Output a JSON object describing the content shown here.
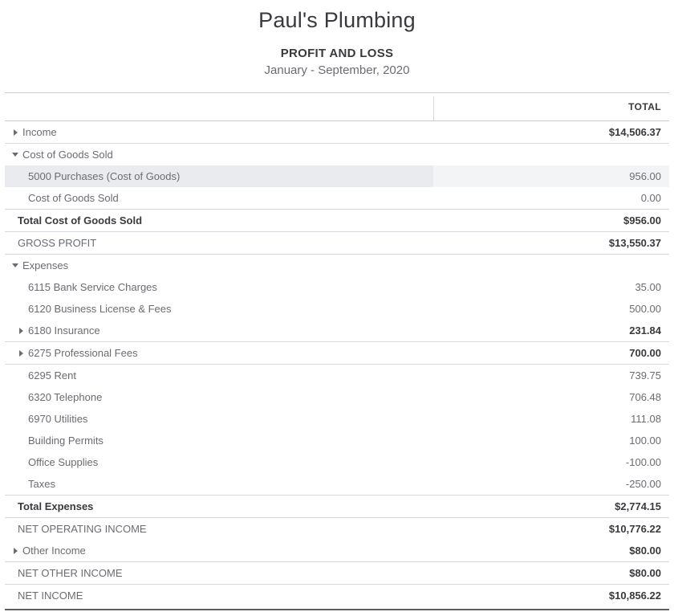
{
  "header": {
    "company": "Paul's Plumbing",
    "title": "PROFIT AND LOSS",
    "period": "January - September, 2020"
  },
  "table": {
    "total_header": "TOTAL",
    "rows": [
      {
        "label": "Income",
        "value": "$14,506.37",
        "indent": 0,
        "arrow": "right",
        "bold_label": false,
        "bold_value": true,
        "highlighted": false,
        "border_bottom": true,
        "end_rule": false
      },
      {
        "label": "Cost of Goods Sold",
        "value": "",
        "indent": 0,
        "arrow": "down",
        "bold_label": false,
        "bold_value": false,
        "highlighted": false,
        "border_bottom": false,
        "end_rule": false
      },
      {
        "label": "5000 Purchases (Cost of Goods)",
        "value": "956.00",
        "indent": 1,
        "arrow": null,
        "bold_label": false,
        "bold_value": false,
        "highlighted": true,
        "border_bottom": false,
        "end_rule": false
      },
      {
        "label": "Cost of Goods Sold",
        "value": "0.00",
        "indent": 1,
        "arrow": null,
        "bold_label": false,
        "bold_value": false,
        "highlighted": false,
        "border_bottom": true,
        "end_rule": false
      },
      {
        "label": "Total Cost of Goods Sold",
        "value": "$956.00",
        "indent": 0,
        "arrow": null,
        "bold_label": true,
        "bold_value": true,
        "highlighted": false,
        "border_bottom": true,
        "end_rule": false
      },
      {
        "label": "GROSS PROFIT",
        "value": "$13,550.37",
        "indent": 0,
        "arrow": null,
        "bold_label": false,
        "bold_value": true,
        "highlighted": false,
        "border_bottom": true,
        "end_rule": false
      },
      {
        "label": "Expenses",
        "value": "",
        "indent": 0,
        "arrow": "down",
        "bold_label": false,
        "bold_value": false,
        "highlighted": false,
        "border_bottom": false,
        "end_rule": false
      },
      {
        "label": "6115 Bank Service Charges",
        "value": "35.00",
        "indent": 1,
        "arrow": null,
        "bold_label": false,
        "bold_value": false,
        "highlighted": false,
        "border_bottom": false,
        "end_rule": false
      },
      {
        "label": "6120 Business License & Fees",
        "value": "500.00",
        "indent": 1,
        "arrow": null,
        "bold_label": false,
        "bold_value": false,
        "highlighted": false,
        "border_bottom": false,
        "end_rule": false
      },
      {
        "label": "6180 Insurance",
        "value": "231.84",
        "indent": 1,
        "arrow": "right",
        "bold_label": false,
        "bold_value": true,
        "highlighted": false,
        "border_bottom": true,
        "end_rule": false
      },
      {
        "label": "6275 Professional Fees",
        "value": "700.00",
        "indent": 1,
        "arrow": "right",
        "bold_label": false,
        "bold_value": true,
        "highlighted": false,
        "border_bottom": true,
        "end_rule": false
      },
      {
        "label": "6295 Rent",
        "value": "739.75",
        "indent": 1,
        "arrow": null,
        "bold_label": false,
        "bold_value": false,
        "highlighted": false,
        "border_bottom": false,
        "end_rule": false
      },
      {
        "label": "6320 Telephone",
        "value": "706.48",
        "indent": 1,
        "arrow": null,
        "bold_label": false,
        "bold_value": false,
        "highlighted": false,
        "border_bottom": false,
        "end_rule": false
      },
      {
        "label": "6970 Utilities",
        "value": "111.08",
        "indent": 1,
        "arrow": null,
        "bold_label": false,
        "bold_value": false,
        "highlighted": false,
        "border_bottom": false,
        "end_rule": false
      },
      {
        "label": "Building Permits",
        "value": "100.00",
        "indent": 1,
        "arrow": null,
        "bold_label": false,
        "bold_value": false,
        "highlighted": false,
        "border_bottom": false,
        "end_rule": false
      },
      {
        "label": "Office Supplies",
        "value": "-100.00",
        "indent": 1,
        "arrow": null,
        "bold_label": false,
        "bold_value": false,
        "highlighted": false,
        "border_bottom": false,
        "end_rule": false
      },
      {
        "label": "Taxes",
        "value": "-250.00",
        "indent": 1,
        "arrow": null,
        "bold_label": false,
        "bold_value": false,
        "highlighted": false,
        "border_bottom": true,
        "end_rule": false
      },
      {
        "label": "Total Expenses",
        "value": "$2,774.15",
        "indent": 0,
        "arrow": null,
        "bold_label": true,
        "bold_value": true,
        "highlighted": false,
        "border_bottom": true,
        "end_rule": false
      },
      {
        "label": "NET OPERATING INCOME",
        "value": "$10,776.22",
        "indent": 0,
        "arrow": null,
        "bold_label": false,
        "bold_value": true,
        "highlighted": false,
        "border_bottom": false,
        "end_rule": false
      },
      {
        "label": "Other Income",
        "value": "$80.00",
        "indent": 0,
        "arrow": "right",
        "bold_label": false,
        "bold_value": true,
        "highlighted": false,
        "border_bottom": true,
        "end_rule": false
      },
      {
        "label": "NET OTHER INCOME",
        "value": "$80.00",
        "indent": 0,
        "arrow": null,
        "bold_label": false,
        "bold_value": true,
        "highlighted": false,
        "border_bottom": true,
        "end_rule": false
      },
      {
        "label": "NET INCOME",
        "value": "$10,856.22",
        "indent": 0,
        "arrow": null,
        "bold_label": false,
        "bold_value": true,
        "highlighted": false,
        "border_bottom": false,
        "end_rule": true
      }
    ]
  },
  "colors": {
    "text_dark": "#393A3D",
    "text_gray": "#6B6C72",
    "row_border": "#D5D8DC",
    "table_border": "#C8CBD0",
    "highlight_label_bg": "#EAEBEE",
    "highlight_value_bg": "#F3F4F6",
    "double_rule": "#5E5F64"
  }
}
